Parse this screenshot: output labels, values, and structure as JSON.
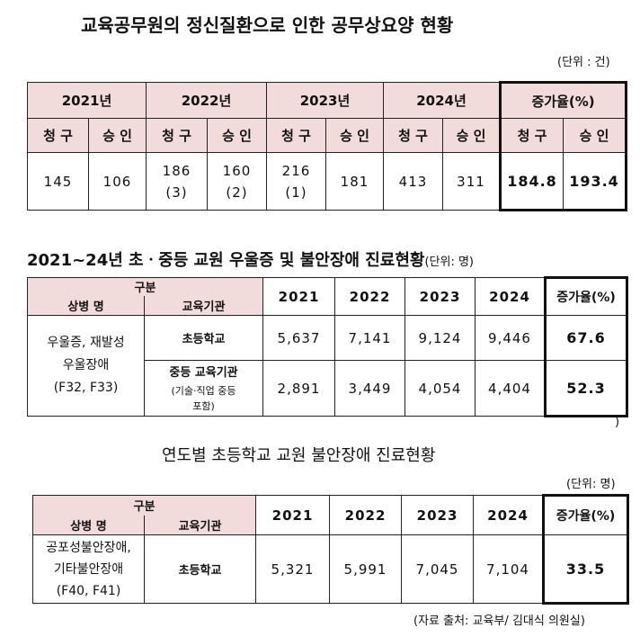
{
  "section1": {
    "title": "교육공무원의 정신질환으로 인한 공무상요양 현황",
    "unit": "(단위 : 건)",
    "years": [
      "2021년",
      "2022년",
      "2023년",
      "2024년"
    ],
    "increase_label": "증가율(%)",
    "sub_claim": "청 구",
    "sub_approve": "승 인",
    "values": [
      [
        "145",
        "106"
      ],
      [
        "186\n(3)",
        "160\n(2)"
      ],
      [
        "216\n(1)",
        "181"
      ],
      [
        "413",
        "311"
      ]
    ],
    "increase": [
      "184.8",
      "193.4"
    ]
  },
  "section2": {
    "title": "2021~24년 초ㆍ중등 교원 우울증 및 불안장애 진료현황",
    "unit": "(단위: 명)",
    "header_group": "구분",
    "header_disease": "상병 명",
    "header_institution": "교육기관",
    "years": [
      "2021",
      "2022",
      "2023",
      "2024"
    ],
    "increase_label": "증가율(%)",
    "disease_lines": [
      "우울증, 재발성",
      "우울장애",
      "(F32, F33)"
    ],
    "rows": [
      {
        "institution": "초등학교",
        "institution_sub": "",
        "values": [
          "5,637",
          "7,141",
          "9,124",
          "9,446"
        ],
        "increase": "67.6"
      },
      {
        "institution": "중등 교육기관",
        "institution_sub": "(기술·직업 중등\n포함)",
        "values": [
          "2,891",
          "3,449",
          "4,054",
          "4,404"
        ],
        "increase": "52.3"
      }
    ],
    "trailing": ")"
  },
  "section3": {
    "title": "연도별 초등학교 교원 불안장애 진료현황",
    "unit": "(단위: 명)",
    "header_group": "구분",
    "header_disease": "상병 명",
    "header_institution": "교육기관",
    "years": [
      "2021",
      "2022",
      "2023",
      "2024"
    ],
    "increase_label": "증가율(%)",
    "disease_lines": [
      "공포성불안장애,",
      "기타불안장애",
      "(F40, F41)"
    ],
    "institution": "초등학교",
    "values": [
      "5,321",
      "5,991",
      "7,045",
      "7,104"
    ],
    "increase": "33.5",
    "source": "(자료 출처: 교육부/ 김대식 의원실)"
  }
}
